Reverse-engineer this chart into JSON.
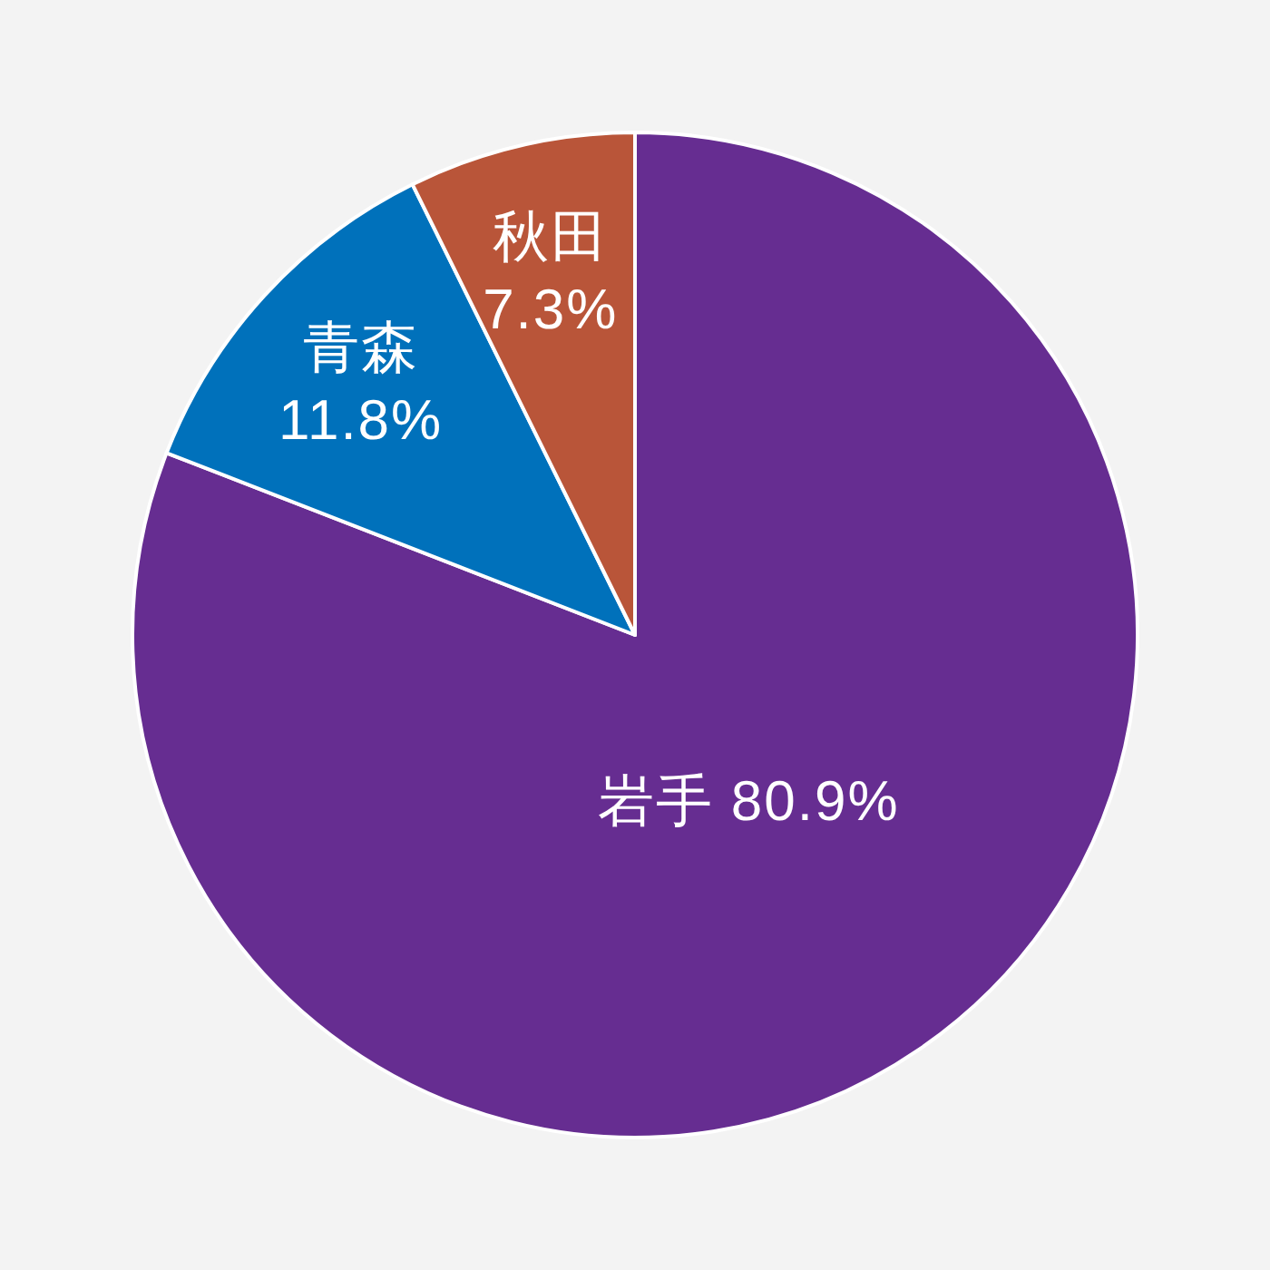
{
  "chart_data": {
    "type": "pie",
    "categories": [
      "岩手",
      "青森",
      "秋田"
    ],
    "values": [
      80.9,
      11.8,
      7.3
    ],
    "colors": [
      "#662d91",
      "#0071bb",
      "#b95539"
    ],
    "value_labels": [
      "80.9%",
      "11.8%",
      "7.3%"
    ]
  }
}
